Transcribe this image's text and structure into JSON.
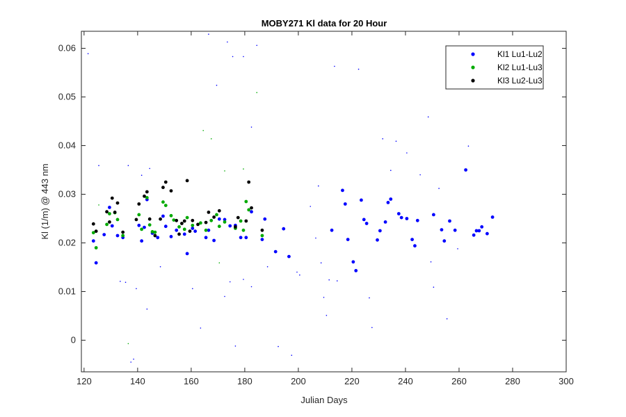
{
  "chart_data": {
    "type": "scatter",
    "title": "MOBY271   Kl data for 20 Hour",
    "xlabel": "Julian Days",
    "ylabel": "Kl (1/m) @ 443 nm",
    "xlim": [
      119,
      300
    ],
    "ylim": [
      -0.0065,
      0.0635
    ],
    "xticks": [
      120,
      140,
      160,
      180,
      200,
      220,
      240,
      260,
      280,
      300
    ],
    "yticks": [
      0,
      0.01,
      0.02,
      0.03,
      0.04,
      0.05,
      0.06
    ],
    "ytick_labels": [
      "0",
      "0.01",
      "0.02",
      "0.03",
      "0.04",
      "0.05",
      "0.06"
    ],
    "grid": false,
    "legend_position": "top-right",
    "series": [
      {
        "name": "Kl1 Lu1-Lu2",
        "color": "#0000ff",
        "points": [
          [
            123.5,
            0.0204
          ],
          [
            124.5,
            0.0159
          ],
          [
            127.5,
            0.0217
          ],
          [
            129.5,
            0.0273
          ],
          [
            130.5,
            0.0235
          ],
          [
            132.5,
            0.0215
          ],
          [
            134.5,
            0.0211
          ],
          [
            140.5,
            0.0236
          ],
          [
            141.5,
            0.0204
          ],
          [
            142.5,
            0.0232
          ],
          [
            143.5,
            0.0289
          ],
          [
            145.5,
            0.022
          ],
          [
            147.5,
            0.0211
          ],
          [
            149.5,
            0.0255
          ],
          [
            150.5,
            0.0234
          ],
          [
            152.5,
            0.0213
          ],
          [
            154.5,
            0.0226
          ],
          [
            157.5,
            0.0218
          ],
          [
            158.5,
            0.0178
          ],
          [
            160.5,
            0.023
          ],
          [
            161.5,
            0.0224
          ],
          [
            165.5,
            0.0211
          ],
          [
            166.5,
            0.0226
          ],
          [
            168.5,
            0.0205
          ],
          [
            170.5,
            0.0249
          ],
          [
            172.5,
            0.0248
          ],
          [
            174.5,
            0.0235
          ],
          [
            176.5,
            0.0236
          ],
          [
            178.5,
            0.0211
          ],
          [
            180.5,
            0.0211
          ],
          [
            182.5,
            0.0264
          ],
          [
            186.5,
            0.0207
          ],
          [
            187.5,
            0.0249
          ],
          [
            191.5,
            0.0182
          ],
          [
            194.5,
            0.0229
          ],
          [
            196.5,
            0.0172
          ],
          [
            212.5,
            0.0226
          ],
          [
            216.5,
            0.0308
          ],
          [
            217.5,
            0.028
          ],
          [
            218.5,
            0.0207
          ],
          [
            220.5,
            0.0161
          ],
          [
            221.5,
            0.0143
          ],
          [
            223.5,
            0.0288
          ],
          [
            224.5,
            0.0248
          ],
          [
            225.5,
            0.024
          ],
          [
            229.5,
            0.0206
          ],
          [
            230.5,
            0.0225
          ],
          [
            232.5,
            0.0243
          ],
          [
            233.5,
            0.0283
          ],
          [
            234.5,
            0.029
          ],
          [
            237.5,
            0.026
          ],
          [
            238.5,
            0.0252
          ],
          [
            240.5,
            0.025
          ],
          [
            242.5,
            0.0207
          ],
          [
            243.5,
            0.0194
          ],
          [
            244.5,
            0.0246
          ],
          [
            250.5,
            0.0258
          ],
          [
            253.5,
            0.0227
          ],
          [
            254.5,
            0.0204
          ],
          [
            256.5,
            0.0245
          ],
          [
            258.5,
            0.0226
          ],
          [
            262.5,
            0.035
          ],
          [
            265.5,
            0.0216
          ],
          [
            266.5,
            0.0225
          ],
          [
            267.5,
            0.0225
          ],
          [
            268.5,
            0.0233
          ],
          [
            270.5,
            0.0219
          ],
          [
            272.5,
            0.0253
          ]
        ]
      },
      {
        "name": "Kl2 Lu1-Lu3",
        "color": "#00aa00",
        "points": [
          [
            123.5,
            0.0221
          ],
          [
            124.5,
            0.019
          ],
          [
            128.5,
            0.0238
          ],
          [
            129.5,
            0.026
          ],
          [
            131.5,
            0.0262
          ],
          [
            132.5,
            0.0248
          ],
          [
            134.5,
            0.0215
          ],
          [
            140.5,
            0.0258
          ],
          [
            141.5,
            0.0228
          ],
          [
            143.5,
            0.0293
          ],
          [
            144.5,
            0.0237
          ],
          [
            145.5,
            0.0223
          ],
          [
            146.5,
            0.0222
          ],
          [
            149.5,
            0.0284
          ],
          [
            150.5,
            0.0277
          ],
          [
            152.5,
            0.0256
          ],
          [
            153.5,
            0.0247
          ],
          [
            155.5,
            0.0233
          ],
          [
            157.5,
            0.0228
          ],
          [
            158.5,
            0.0252
          ],
          [
            160.5,
            0.0236
          ],
          [
            163.5,
            0.0241
          ],
          [
            165.5,
            0.0226
          ],
          [
            167.5,
            0.0246
          ],
          [
            169.5,
            0.0258
          ],
          [
            170.5,
            0.0234
          ],
          [
            172.5,
            0.0243
          ],
          [
            176.5,
            0.023
          ],
          [
            178.5,
            0.0245
          ],
          [
            179.5,
            0.0226
          ],
          [
            180.5,
            0.0285
          ],
          [
            181.5,
            0.0268
          ],
          [
            186.5,
            0.0215
          ]
        ]
      },
      {
        "name": "Kl3 Lu2-Lu3",
        "color": "#000000",
        "points": [
          [
            123.5,
            0.0239
          ],
          [
            124.5,
            0.0224
          ],
          [
            128.5,
            0.0264
          ],
          [
            129.5,
            0.0243
          ],
          [
            130.5,
            0.0292
          ],
          [
            131.5,
            0.0263
          ],
          [
            132.5,
            0.0282
          ],
          [
            134.5,
            0.0222
          ],
          [
            139.5,
            0.0248
          ],
          [
            140.5,
            0.028
          ],
          [
            142.5,
            0.0296
          ],
          [
            143.5,
            0.0305
          ],
          [
            144.5,
            0.0249
          ],
          [
            146.5,
            0.0215
          ],
          [
            148.5,
            0.0249
          ],
          [
            149.5,
            0.0314
          ],
          [
            150.5,
            0.0325
          ],
          [
            152.5,
            0.0307
          ],
          [
            154.5,
            0.0246
          ],
          [
            155.5,
            0.0218
          ],
          [
            156.5,
            0.024
          ],
          [
            157.5,
            0.0245
          ],
          [
            158.5,
            0.0328
          ],
          [
            159.5,
            0.0224
          ],
          [
            160.5,
            0.0246
          ],
          [
            162.5,
            0.0238
          ],
          [
            165.5,
            0.0242
          ],
          [
            166.5,
            0.0263
          ],
          [
            168.5,
            0.0253
          ],
          [
            170.5,
            0.0266
          ],
          [
            176.5,
            0.0233
          ],
          [
            177.5,
            0.0252
          ],
          [
            180.5,
            0.0245
          ],
          [
            181.5,
            0.0325
          ],
          [
            182.5,
            0.0272
          ],
          [
            186.5,
            0.0226
          ]
        ]
      }
    ],
    "scatter_outliers": {
      "name": "Kl1 Lu1-Lu2",
      "color": "#0000ff",
      "points": [
        [
          121.5,
          0.0589
        ],
        [
          125.5,
          0.0359
        ],
        [
          133.5,
          0.0121
        ],
        [
          135.5,
          0.0119
        ],
        [
          136.5,
          0.0359
        ],
        [
          137.5,
          -0.0045
        ],
        [
          138.5,
          -0.0039
        ],
        [
          139.5,
          0.0106
        ],
        [
          141.5,
          0.0339
        ],
        [
          143.5,
          0.0064
        ],
        [
          144.5,
          0.0353
        ],
        [
          148.5,
          0.0151
        ],
        [
          160.5,
          0.0106
        ],
        [
          163.5,
          0.0025
        ],
        [
          166.5,
          0.0629
        ],
        [
          169.5,
          0.0524
        ],
        [
          172.5,
          0.009
        ],
        [
          173.5,
          0.0613
        ],
        [
          174.5,
          0.012
        ],
        [
          175.5,
          0.0583
        ],
        [
          176.5,
          -0.0012
        ],
        [
          179.5,
          0.0125
        ],
        [
          179.5,
          0.0583
        ],
        [
          182.5,
          0.011
        ],
        [
          182.5,
          0.0438
        ],
        [
          184.5,
          0.0606
        ],
        [
          188.5,
          0.0151
        ],
        [
          192.5,
          -0.0013
        ],
        [
          197.5,
          -0.0031
        ],
        [
          199.5,
          0.014
        ],
        [
          200.5,
          0.0134
        ],
        [
          204.5,
          0.0275
        ],
        [
          206.5,
          0.021
        ],
        [
          207.5,
          0.0317
        ],
        [
          208.5,
          0.0159
        ],
        [
          209.5,
          0.0088
        ],
        [
          210.5,
          0.0051
        ],
        [
          211.5,
          0.0124
        ],
        [
          213.5,
          0.0563
        ],
        [
          214.5,
          0.0122
        ],
        [
          222.5,
          0.0557
        ],
        [
          226.5,
          0.0087
        ],
        [
          227.5,
          0.0026
        ],
        [
          231.5,
          0.0414
        ],
        [
          234.5,
          0.0349
        ],
        [
          236.5,
          0.0409
        ],
        [
          240.5,
          0.0385
        ],
        [
          245.5,
          0.034
        ],
        [
          248.5,
          0.0459
        ],
        [
          249.5,
          0.0161
        ],
        [
          250.5,
          0.0109
        ],
        [
          252.5,
          0.0312
        ],
        [
          255.5,
          0.0044
        ],
        [
          259.5,
          0.0188
        ],
        [
          263.5,
          0.0399
        ]
      ]
    },
    "scatter_outliers_green": {
      "name": "Kl2 Lu1-Lu3",
      "color": "#00aa00",
      "points": [
        [
          125.5,
          0.0278
        ],
        [
          136.5,
          -0.0007
        ],
        [
          164.5,
          0.0431
        ],
        [
          167.5,
          0.0414
        ],
        [
          170.5,
          0.0159
        ],
        [
          172.5,
          0.0348
        ],
        [
          179.5,
          0.0352
        ],
        [
          184.5,
          0.0509
        ]
      ]
    }
  }
}
